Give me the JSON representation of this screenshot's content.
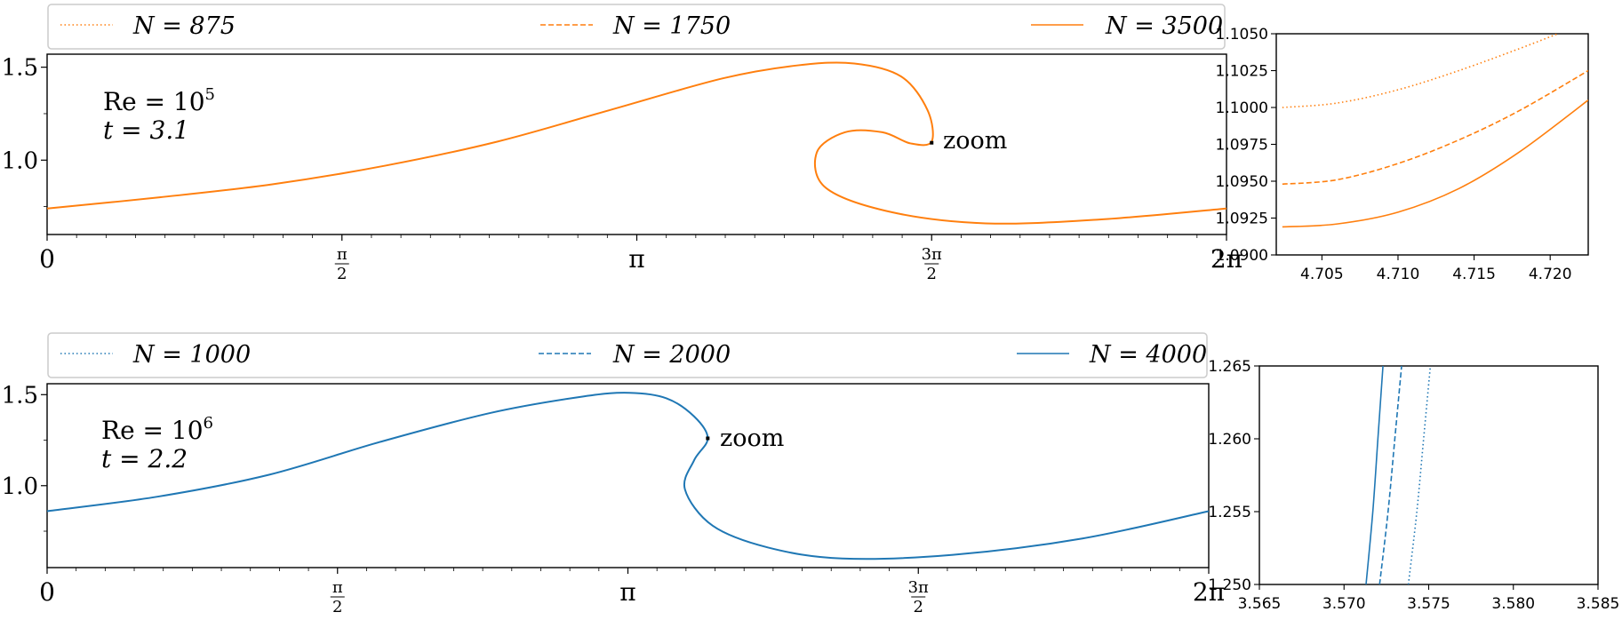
{
  "colors": {
    "orange": "#ff7f0e",
    "blue": "#1f77b4",
    "axis": "#000000",
    "legend_border": "#cccccc"
  },
  "chart_data": [
    {
      "id": "top-main",
      "type": "line",
      "xlim": [
        0,
        6.2832
      ],
      "ylim": [
        0.6,
        1.57
      ],
      "x_ticks": [
        {
          "value": 0,
          "label": "0"
        },
        {
          "value": 1.5708,
          "label_num": "π",
          "label_den": "2"
        },
        {
          "value": 3.1416,
          "label": "π"
        },
        {
          "value": 4.7124,
          "label_num": "3π",
          "label_den": "2"
        },
        {
          "value": 6.2832,
          "label": "2π"
        }
      ],
      "y_ticks": [
        {
          "value": 1.0,
          "label": "1.0"
        },
        {
          "value": 1.5,
          "label": "1.5"
        }
      ],
      "annotation": {
        "re": "Re = 10",
        "re_exp": "5",
        "t": "t = 3.1"
      },
      "zoom_label": "zoom",
      "zoom_point": [
        4.7124,
        1.0935
      ],
      "legend": [
        {
          "label": "N = 875",
          "dash": "dotted"
        },
        {
          "label": "N = 1750",
          "dash": "dashed"
        },
        {
          "label": "N = 3500",
          "dash": "solid"
        }
      ],
      "curve": [
        [
          0,
          0.74
        ],
        [
          0.6,
          0.8
        ],
        [
          1.2,
          0.87
        ],
        [
          1.8,
          0.97
        ],
        [
          2.4,
          1.1
        ],
        [
          3.0,
          1.27
        ],
        [
          3.6,
          1.44
        ],
        [
          4.0,
          1.51
        ],
        [
          4.3,
          1.52
        ],
        [
          4.55,
          1.45
        ],
        [
          4.69,
          1.27
        ],
        [
          4.7124,
          1.1
        ],
        [
          4.6,
          1.09
        ],
        [
          4.45,
          1.15
        ],
        [
          4.25,
          1.15
        ],
        [
          4.1,
          1.04
        ],
        [
          4.15,
          0.85
        ],
        [
          4.5,
          0.72
        ],
        [
          5.0,
          0.66
        ],
        [
          5.6,
          0.68
        ],
        [
          6.2832,
          0.74
        ]
      ]
    },
    {
      "id": "top-inset",
      "type": "line",
      "xlim": [
        4.702,
        4.7225
      ],
      "ylim": [
        1.09,
        1.105
      ],
      "x_ticks": [
        4.705,
        4.71,
        4.715,
        4.72
      ],
      "x_tick_labels": [
        "4.705",
        "4.710",
        "4.715",
        "4.720"
      ],
      "y_ticks": [
        1.09,
        1.0925,
        1.095,
        1.0975,
        1.1,
        1.1025,
        1.105
      ],
      "y_tick_labels": [
        "1.0900",
        "1.0925",
        "1.0950",
        "1.0975",
        "1.1000",
        "1.1025",
        "1.1050"
      ],
      "series": [
        {
          "name": "N = 875",
          "dash": "dotted",
          "x": [
            4.7024,
            4.706,
            4.71,
            4.714,
            4.718,
            4.7205
          ],
          "y": [
            1.1,
            1.1003,
            1.1012,
            1.1025,
            1.104,
            1.105
          ]
        },
        {
          "name": "N = 1750",
          "dash": "dashed",
          "x": [
            4.7024,
            4.706,
            4.71,
            4.714,
            4.718,
            4.7225
          ],
          "y": [
            1.0948,
            1.0951,
            1.0962,
            1.0978,
            1.0998,
            1.1025
          ]
        },
        {
          "name": "N = 3500",
          "dash": "solid",
          "x": [
            4.7024,
            4.706,
            4.71,
            4.714,
            4.718,
            4.7225
          ],
          "y": [
            1.0919,
            1.0921,
            1.0929,
            1.0945,
            1.097,
            1.1005
          ]
        }
      ]
    },
    {
      "id": "bottom-main",
      "type": "line",
      "xlim": [
        0,
        6.2832
      ],
      "ylim": [
        0.55,
        1.56
      ],
      "x_ticks": [
        {
          "value": 0,
          "label": "0"
        },
        {
          "value": 1.5708,
          "label_num": "π",
          "label_den": "2"
        },
        {
          "value": 3.1416,
          "label": "π"
        },
        {
          "value": 4.7124,
          "label_num": "3π",
          "label_den": "2"
        },
        {
          "value": 6.2832,
          "label": "2π"
        }
      ],
      "y_ticks": [
        {
          "value": 1.0,
          "label": "1.0"
        },
        {
          "value": 1.5,
          "label": "1.5"
        }
      ],
      "annotation": {
        "re": "Re = 10",
        "re_exp": "6",
        "t": "t = 2.2"
      },
      "zoom_label": "zoom",
      "zoom_point": [
        3.5735,
        1.26
      ],
      "legend": [
        {
          "label": "N = 1000",
          "dash": "dotted"
        },
        {
          "label": "N = 2000",
          "dash": "dashed"
        },
        {
          "label": "N = 4000",
          "dash": "solid"
        }
      ],
      "curve": [
        [
          0,
          0.86
        ],
        [
          0.6,
          0.94
        ],
        [
          1.2,
          1.06
        ],
        [
          1.8,
          1.24
        ],
        [
          2.4,
          1.4
        ],
        [
          2.9,
          1.49
        ],
        [
          3.15,
          1.51
        ],
        [
          3.35,
          1.48
        ],
        [
          3.5,
          1.38
        ],
        [
          3.5735,
          1.26
        ],
        [
          3.5,
          1.14
        ],
        [
          3.45,
          0.98
        ],
        [
          3.6,
          0.78
        ],
        [
          3.9,
          0.66
        ],
        [
          4.3,
          0.6
        ],
        [
          4.9,
          0.62
        ],
        [
          5.6,
          0.71
        ],
        [
          6.2832,
          0.86
        ]
      ]
    },
    {
      "id": "bottom-inset",
      "type": "line",
      "xlim": [
        3.565,
        3.585
      ],
      "ylim": [
        1.25,
        1.265
      ],
      "x_ticks": [
        3.565,
        3.57,
        3.575,
        3.58,
        3.585
      ],
      "x_tick_labels": [
        "3.565",
        "3.570",
        "3.575",
        "3.580",
        "3.585"
      ],
      "y_ticks": [
        1.25,
        1.255,
        1.26,
        1.265
      ],
      "y_tick_labels": [
        "1.250",
        "1.255",
        "1.260",
        "1.265"
      ],
      "series": [
        {
          "name": "N = 1000",
          "dash": "dotted",
          "x": [
            3.5738,
            3.5743,
            3.5747,
            3.5751
          ],
          "y": [
            1.25,
            1.255,
            1.26,
            1.265
          ]
        },
        {
          "name": "N = 2000",
          "dash": "dashed",
          "x": [
            3.5721,
            3.5726,
            3.573,
            3.5734
          ],
          "y": [
            1.25,
            1.255,
            1.26,
            1.265
          ]
        },
        {
          "name": "N = 4000",
          "dash": "solid",
          "x": [
            3.5713,
            3.5717,
            3.572,
            3.5723
          ],
          "y": [
            1.25,
            1.255,
            1.26,
            1.265
          ]
        }
      ]
    }
  ]
}
